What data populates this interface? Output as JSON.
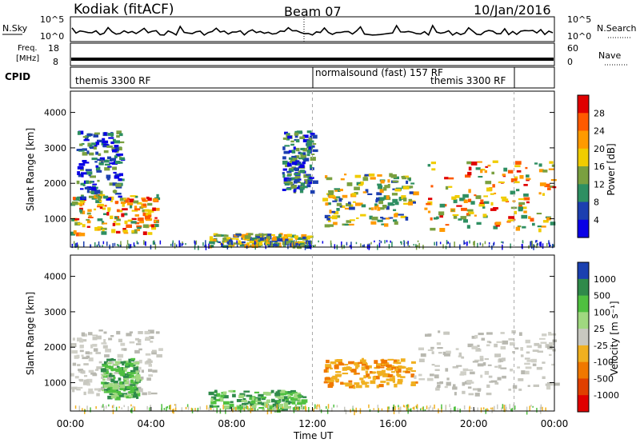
{
  "header": {
    "station": "Kodiak (fitACF)",
    "beam": "Beam 07",
    "date": "10/Jan/2016"
  },
  "top_panels": {
    "nsky_label": "N.Sky",
    "nsearch_label": "N.Search",
    "nsky_ticks": [
      "10^5",
      "10^0"
    ],
    "nsearch_ticks": [
      "10^5",
      "10^0"
    ],
    "freq_label_1": "Freq.",
    "freq_label_2": "[MHz]",
    "freq_ticks": [
      "18",
      "8"
    ],
    "nave_label": "Nave",
    "nave_ticks": [
      "60",
      "0"
    ],
    "cpid_label": "CPID",
    "cpid_segments": [
      "themis 3300 RF",
      "normalsound (fast) 157 RF",
      "themis 3300 RF"
    ]
  },
  "chart_data": [
    {
      "type": "heatmap",
      "panel": "power",
      "ylabel": "Slant Range [km]",
      "yticks": [
        1000,
        2000,
        3000,
        4000
      ],
      "ylim": [
        200,
        4600
      ],
      "xlim_hours": [
        0,
        24
      ],
      "colorbar_label": "Power [dB]",
      "colorbar_ticks": [
        28,
        24,
        20,
        16,
        12,
        8,
        4
      ],
      "colorbar_colors": [
        "#e00000",
        "#ff5a00",
        "#ff9a00",
        "#f0cc00",
        "#7aa040",
        "#2e8f62",
        "#1c3fb0",
        "#0a00e6"
      ],
      "regions": [
        {
          "t": [
            0.0,
            4.3
          ],
          "r": [
            600,
            1700
          ],
          "level": "high"
        },
        {
          "t": [
            0.3,
            2.5
          ],
          "r": [
            1600,
            3500
          ],
          "level": "low"
        },
        {
          "t": [
            6.8,
            11.8
          ],
          "r": [
            250,
            600
          ],
          "level": "medium"
        },
        {
          "t": [
            10.5,
            12.0
          ],
          "r": [
            1800,
            3500
          ],
          "level": "low"
        },
        {
          "t": [
            12.5,
            17.0
          ],
          "r": [
            800,
            2300
          ],
          "level": "medium"
        },
        {
          "t": [
            17.5,
            24.0
          ],
          "r": [
            700,
            2700
          ],
          "level": "high"
        }
      ]
    },
    {
      "type": "heatmap",
      "panel": "velocity",
      "ylabel": "Slant Range [km]",
      "yticks": [
        1000,
        2000,
        3000,
        4000
      ],
      "ylim": [
        200,
        4600
      ],
      "xlim_hours": [
        0,
        24
      ],
      "xticks": [
        "00:00",
        "04:00",
        "08:00",
        "12:00",
        "16:00",
        "20:00",
        "00:00"
      ],
      "xlabel": "Time UT",
      "colorbar_label": "Velocity [m s⁻¹]",
      "colorbar_ticks": [
        1000,
        500,
        100,
        25,
        -25,
        -100,
        -500,
        -1000
      ],
      "colorbar_colors": [
        "#1a40b0",
        "#2f8a4a",
        "#4fc040",
        "#a0d880",
        "#c8c8c0",
        "#f0b020",
        "#f07800",
        "#e04000",
        "#e00000"
      ],
      "regions": [
        {
          "t": [
            0.0,
            4.5
          ],
          "r": [
            700,
            2500
          ],
          "level": "grey"
        },
        {
          "t": [
            1.5,
            3.3
          ],
          "r": [
            600,
            1700
          ],
          "level": "green"
        },
        {
          "t": [
            6.8,
            11.5
          ],
          "r": [
            250,
            800
          ],
          "level": "green"
        },
        {
          "t": [
            12.5,
            17.0
          ],
          "r": [
            900,
            1700
          ],
          "level": "orange"
        },
        {
          "t": [
            17.0,
            24.0
          ],
          "r": [
            700,
            2500
          ],
          "level": "grey"
        }
      ]
    }
  ]
}
